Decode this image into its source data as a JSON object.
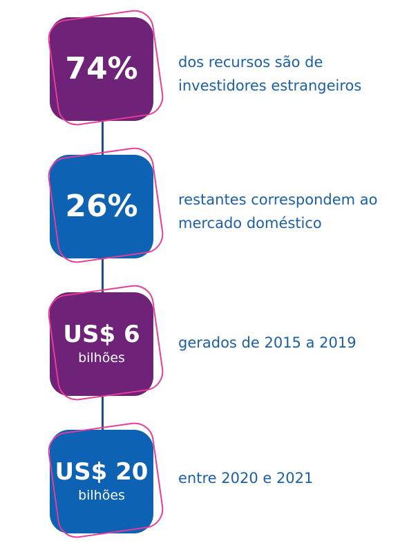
{
  "steps": [
    {
      "value": "74%",
      "unit": "",
      "text": "dos recursos são de investidores estrangeiros",
      "color": "#6e2378"
    },
    {
      "value": "26%",
      "unit": "",
      "text": "restantes correspondem ao mercado doméstico",
      "color": "#0d62b3"
    },
    {
      "value": "US$ 6",
      "unit": "bilhões",
      "text": "gerados de 2015 a 2019",
      "color": "#6e2378"
    },
    {
      "value": "US$ 20",
      "unit": "bilhões",
      "text": "entre 2020 e 2021",
      "color": "#0d62b3"
    }
  ],
  "colors": {
    "outline": "#ea3b97",
    "connector": "#1b4f8a",
    "text": "#1b5fa6"
  }
}
